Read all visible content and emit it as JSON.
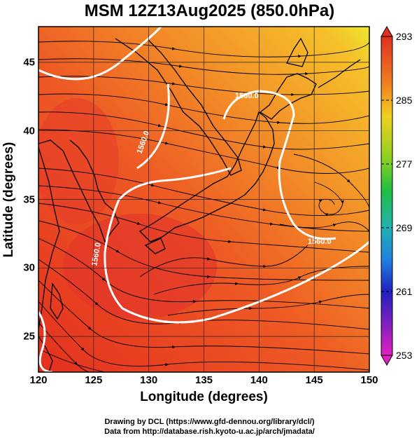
{
  "title": "MSM 12Z13Aug2025 (850.0hPa)",
  "axes": {
    "xlabel": "Longitude (degrees)",
    "ylabel": "Latitude  (degrees)",
    "x_ticks": [
      "120",
      "125",
      "130",
      "135",
      "140",
      "145",
      "150"
    ],
    "y_ticks": [
      "25",
      "30",
      "35",
      "40",
      "45"
    ]
  },
  "colorbar": {
    "labels": [
      "293",
      "285",
      "277",
      "269",
      "261",
      "253"
    ],
    "colors": [
      "#e03020",
      "#f08020",
      "#f0d020",
      "#90d020",
      "#20c040",
      "#20b0b0",
      "#2080e0",
      "#2020c0",
      "#8020c0",
      "#e020c0"
    ]
  },
  "contours": {
    "labels": [
      "1560.0",
      "1560.0",
      "1560.0",
      "1560.0"
    ]
  },
  "credits": {
    "line1": "Drawing by DCL (https://www.gfd-dennou.org/library/dcl/)",
    "line2": "Data from http://database.rish.kyoto-u.ac.jp/arch/jmadata/"
  },
  "chart_data": {
    "type": "heatmap",
    "title": "MSM 12Z13Aug2025 (850.0hPa)",
    "xlabel": "Longitude (degrees)",
    "ylabel": "Latitude  (degrees)",
    "xlim": [
      120,
      150
    ],
    "ylim": [
      22.4,
      47.6
    ],
    "x_ticks": [
      120,
      125,
      130,
      135,
      140,
      145,
      150
    ],
    "y_ticks": [
      25,
      30,
      35,
      40,
      45
    ],
    "colorbar": {
      "min": 253,
      "max": 293,
      "ticks": [
        293,
        285,
        277,
        269,
        261,
        253
      ]
    },
    "contour_level": 1560.0,
    "overlay": "streamlines"
  }
}
